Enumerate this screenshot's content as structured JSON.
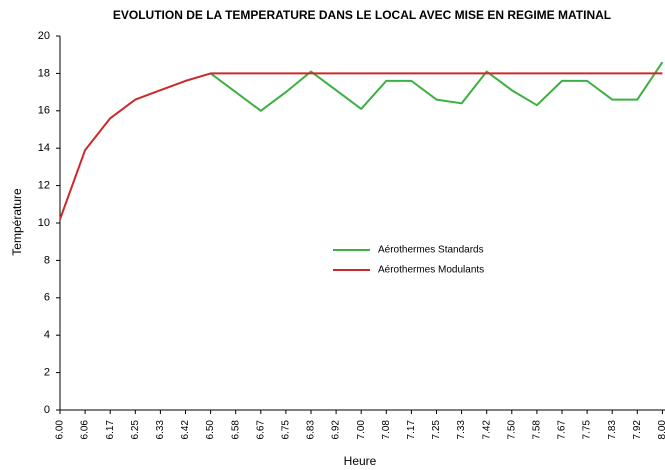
{
  "chart_data": {
    "type": "line",
    "title": "EVOLUTION DE LA TEMPERATURE DANS LE LOCAL AVEC MISE EN REGIME MATINAL",
    "x_label": "Heure",
    "y_label": "Température",
    "categories": [
      "6.00",
      "6.06",
      "6.17",
      "6.25",
      "6.33",
      "6.42",
      "6.50",
      "6.58",
      "6.67",
      "6.75",
      "6.83",
      "6.92",
      "7.00",
      "7.08",
      "7.17",
      "7.25",
      "7.33",
      "7.42",
      "7.50",
      "7.58",
      "7.67",
      "7.75",
      "7.83",
      "7.92",
      "8.00"
    ],
    "series": [
      {
        "name": "Aérothermes Standards",
        "color": "#3cb043",
        "values": [
          null,
          null,
          null,
          null,
          null,
          null,
          18,
          17,
          16,
          17,
          18.1,
          17.1,
          16.1,
          17.6,
          17.6,
          16.6,
          16.4,
          18.1,
          17.1,
          16.3,
          17.6,
          17.6,
          16.6,
          16.6,
          18.6
        ]
      },
      {
        "name": "Aérothermes Modulants",
        "color": "#cc2a2a",
        "values": [
          10.2,
          13.9,
          15.6,
          16.6,
          17.1,
          17.6,
          18,
          18,
          18,
          18,
          18,
          18,
          18,
          18,
          18,
          18,
          18,
          18,
          18,
          18,
          18,
          18,
          18,
          18,
          18
        ]
      }
    ],
    "ylim": [
      0,
      20
    ],
    "yticks": [
      0,
      2,
      4,
      6,
      8,
      10,
      12,
      14,
      16,
      18,
      20
    ]
  }
}
